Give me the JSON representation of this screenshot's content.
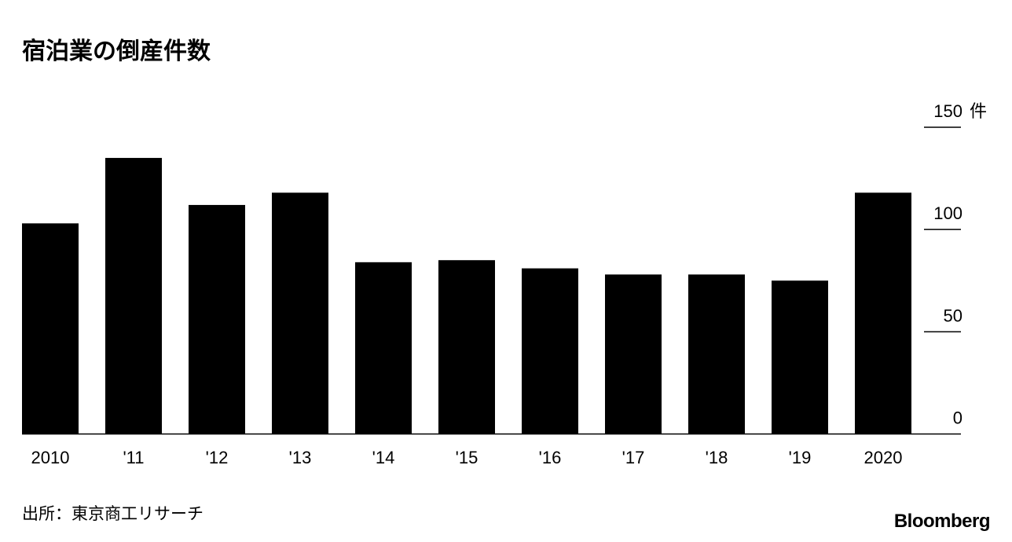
{
  "chart_data": {
    "type": "bar",
    "title": "宿泊業の倒産件数",
    "categories": [
      "2010",
      "'11",
      "'12",
      "'13",
      "'14",
      "'15",
      "'16",
      "'17",
      "'18",
      "'19",
      "2020"
    ],
    "values": [
      103,
      135,
      112,
      118,
      84,
      85,
      81,
      78,
      78,
      75,
      118
    ],
    "ylim": [
      0,
      150
    ],
    "yticks": [
      0,
      50,
      100,
      150
    ],
    "yunit": "件",
    "ytick_labels": [
      "0",
      "50",
      "100",
      "150 件"
    ],
    "bar_color": "#000000",
    "grid": false,
    "source": "出所：東京商工リサーチ",
    "logo": "Bloomberg"
  }
}
